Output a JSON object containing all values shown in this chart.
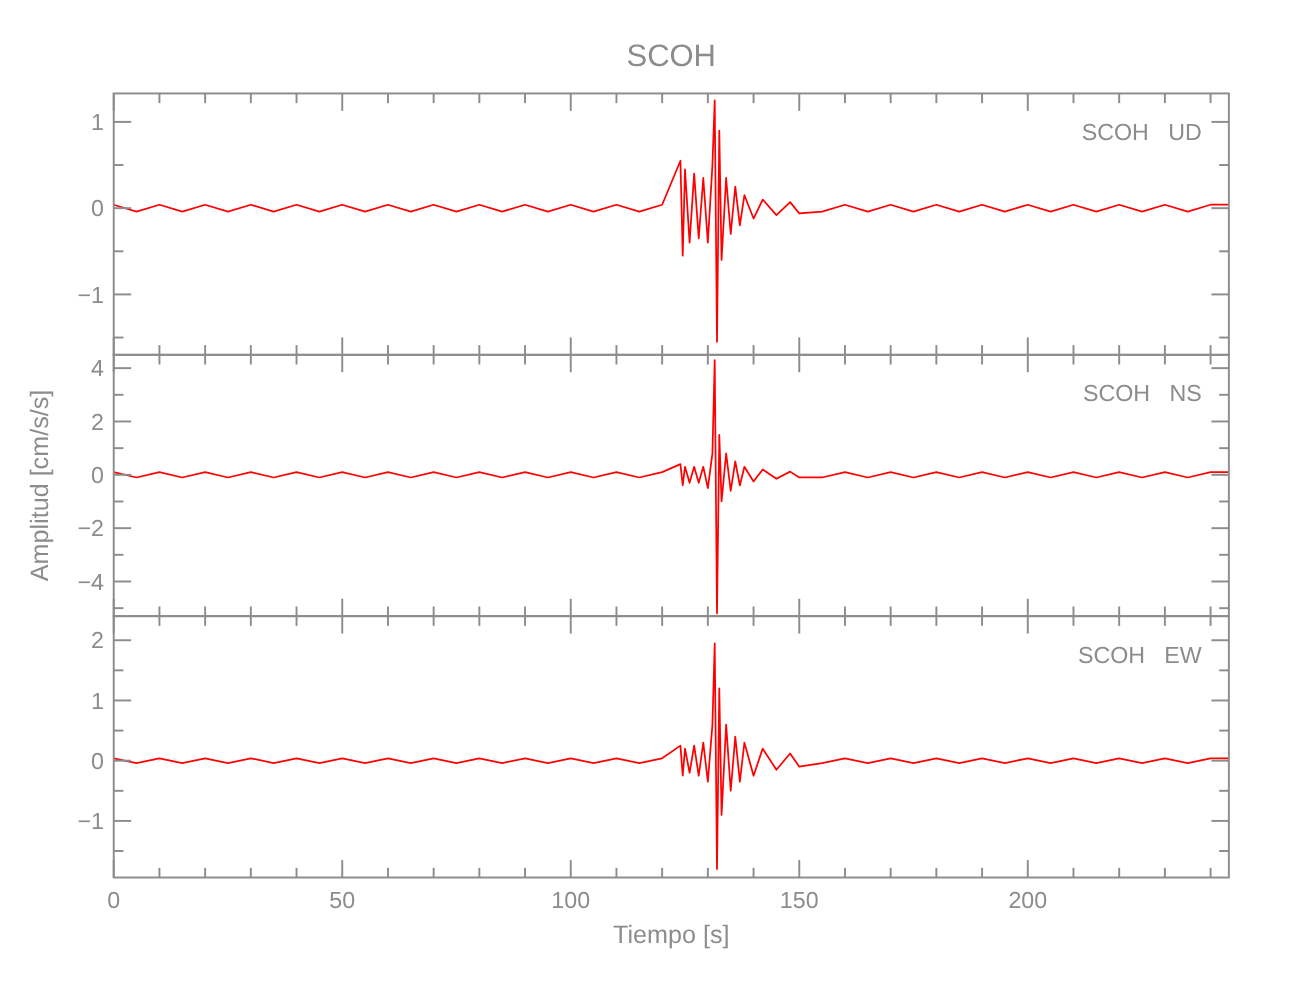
{
  "chart_data": [
    {
      "type": "line",
      "title": "SCOH",
      "annotations": [
        "SCOH   UD"
      ],
      "tick_labels": "y",
      "x": [
        0,
        5,
        10,
        15,
        20,
        25,
        30,
        35,
        40,
        45,
        50,
        55,
        60,
        65,
        70,
        75,
        80,
        85,
        90,
        95,
        100,
        105,
        110,
        115,
        120,
        124,
        124.5,
        125,
        126,
        127,
        128,
        129,
        130,
        131,
        131.5,
        132,
        132.5,
        133,
        134,
        135,
        136,
        137,
        138,
        140,
        142,
        145,
        148,
        150,
        155,
        160,
        165,
        170,
        175,
        180,
        185,
        190,
        195,
        200,
        205,
        210,
        215,
        220,
        225,
        230,
        235,
        240,
        244
      ],
      "xlim": [
        0,
        244
      ],
      "xticks": [
        0,
        {
          "value": 10,
          "label": null
        },
        {
          "value": 20,
          "label": null
        },
        {
          "value": 30,
          "label": null
        },
        {
          "value": 40,
          "label": null
        },
        50,
        {
          "value": 60,
          "label": null
        },
        {
          "value": 70,
          "label": null
        },
        {
          "value": 80,
          "label": null
        },
        {
          "value": 90,
          "label": null
        },
        100,
        {
          "value": 110,
          "label": null
        },
        {
          "value": 120,
          "label": null
        },
        {
          "value": 130,
          "label": null
        },
        {
          "value": 140,
          "label": null
        },
        150,
        {
          "value": 160,
          "label": null
        },
        {
          "value": 170,
          "label": null
        },
        {
          "value": 180,
          "label": null
        },
        {
          "value": 190,
          "label": null
        },
        200,
        {
          "value": 210,
          "label": null
        },
        {
          "value": 220,
          "label": null
        },
        {
          "value": 230,
          "label": null
        },
        {
          "value": 240,
          "label": null
        }
      ],
      "ylim": [
        -1.7,
        1.33
      ],
      "yticks": [
        {
          "value": -1.5,
          "label": null
        },
        -1,
        {
          "value": -0.5,
          "label": null
        },
        0,
        {
          "value": 0.5,
          "label": null
        },
        1
      ],
      "series": [
        {
          "color": "#ff0000",
          "values": [
            0.04,
            -0.04,
            0.04,
            -0.04,
            0.04,
            -0.04,
            0.04,
            -0.04,
            0.04,
            -0.04,
            0.04,
            -0.04,
            0.04,
            -0.04,
            0.04,
            -0.04,
            0.04,
            -0.04,
            0.04,
            -0.04,
            0.04,
            -0.04,
            0.04,
            -0.04,
            0.04,
            0.55,
            -0.55,
            0.45,
            -0.4,
            0.4,
            -0.35,
            0.35,
            -0.4,
            0.5,
            1.25,
            -1.55,
            0.9,
            -0.6,
            0.35,
            -0.3,
            0.25,
            -0.2,
            0.15,
            -0.12,
            0.1,
            -0.08,
            0.07,
            -0.06,
            -0.04,
            0.04,
            -0.04,
            0.04,
            -0.04,
            0.04,
            -0.04,
            0.04,
            -0.04,
            0.04,
            -0.04,
            0.04,
            -0.04,
            0.04,
            -0.04,
            0.04,
            -0.04,
            0.04,
            0.04
          ]
        }
      ]
    },
    {
      "type": "line",
      "ylabel": "Amplitud [cm/s/s]",
      "annotations": [
        "SCOH   NS"
      ],
      "tick_labels": "y",
      "x": [
        0,
        5,
        10,
        15,
        20,
        25,
        30,
        35,
        40,
        45,
        50,
        55,
        60,
        65,
        70,
        75,
        80,
        85,
        90,
        95,
        100,
        105,
        110,
        115,
        120,
        124,
        124.5,
        125,
        126,
        127,
        128,
        129,
        130,
        131,
        131.5,
        132,
        132.5,
        133,
        134,
        135,
        136,
        137,
        138,
        140,
        142,
        145,
        148,
        150,
        155,
        160,
        165,
        170,
        175,
        180,
        185,
        190,
        195,
        200,
        205,
        210,
        215,
        220,
        225,
        230,
        235,
        240,
        244
      ],
      "xlim": [
        0,
        244
      ],
      "xticks": [
        0,
        {
          "value": 10,
          "label": null
        },
        {
          "value": 20,
          "label": null
        },
        {
          "value": 30,
          "label": null
        },
        {
          "value": 40,
          "label": null
        },
        50,
        {
          "value": 60,
          "label": null
        },
        {
          "value": 70,
          "label": null
        },
        {
          "value": 80,
          "label": null
        },
        {
          "value": 90,
          "label": null
        },
        100,
        {
          "value": 110,
          "label": null
        },
        {
          "value": 120,
          "label": null
        },
        {
          "value": 130,
          "label": null
        },
        {
          "value": 140,
          "label": null
        },
        150,
        {
          "value": 160,
          "label": null
        },
        {
          "value": 170,
          "label": null
        },
        {
          "value": 180,
          "label": null
        },
        {
          "value": 190,
          "label": null
        },
        200,
        {
          "value": 210,
          "label": null
        },
        {
          "value": 220,
          "label": null
        },
        {
          "value": 230,
          "label": null
        },
        {
          "value": 240,
          "label": null
        }
      ],
      "ylim": [
        -5.3,
        4.5
      ],
      "yticks": [
        {
          "value": -5,
          "label": null
        },
        -4,
        {
          "value": -3,
          "label": null
        },
        -2,
        {
          "value": -1,
          "label": null
        },
        0,
        {
          "value": 1,
          "label": null
        },
        2,
        {
          "value": 3,
          "label": null
        },
        4
      ],
      "series": [
        {
          "color": "#ff0000",
          "values": [
            0.1,
            -0.1,
            0.1,
            -0.1,
            0.1,
            -0.1,
            0.1,
            -0.1,
            0.1,
            -0.1,
            0.1,
            -0.1,
            0.1,
            -0.1,
            0.1,
            -0.1,
            0.1,
            -0.1,
            0.1,
            -0.1,
            0.1,
            -0.1,
            0.1,
            -0.1,
            0.1,
            0.4,
            -0.4,
            0.3,
            -0.3,
            0.3,
            -0.3,
            0.3,
            -0.5,
            0.8,
            4.3,
            -5.2,
            1.5,
            -1,
            0.8,
            -0.6,
            0.5,
            -0.4,
            0.3,
            -0.25,
            0.2,
            -0.15,
            0.12,
            -0.1,
            -0.1,
            0.1,
            -0.1,
            0.1,
            -0.1,
            0.1,
            -0.1,
            0.1,
            -0.1,
            0.1,
            -0.1,
            0.1,
            -0.1,
            0.1,
            -0.1,
            0.1,
            -0.1,
            0.1,
            0.1
          ]
        }
      ]
    },
    {
      "type": "line",
      "xlabel": "Tiempo [s]",
      "annotations": [
        "SCOH   EW"
      ],
      "x": [
        0,
        5,
        10,
        15,
        20,
        25,
        30,
        35,
        40,
        45,
        50,
        55,
        60,
        65,
        70,
        75,
        80,
        85,
        90,
        95,
        100,
        105,
        110,
        115,
        120,
        124,
        124.5,
        125,
        126,
        127,
        128,
        129,
        130,
        131,
        131.5,
        132,
        132.5,
        133,
        134,
        135,
        136,
        137,
        138,
        140,
        142,
        145,
        148,
        150,
        155,
        160,
        165,
        170,
        175,
        180,
        185,
        190,
        195,
        200,
        205,
        210,
        215,
        220,
        225,
        230,
        235,
        240,
        244
      ],
      "xlim": [
        0,
        244
      ],
      "xticks": [
        0,
        {
          "value": 10,
          "label": null
        },
        {
          "value": 20,
          "label": null
        },
        {
          "value": 30,
          "label": null
        },
        {
          "value": 40,
          "label": null
        },
        50,
        {
          "value": 60,
          "label": null
        },
        {
          "value": 70,
          "label": null
        },
        {
          "value": 80,
          "label": null
        },
        {
          "value": 90,
          "label": null
        },
        100,
        {
          "value": 110,
          "label": null
        },
        {
          "value": 120,
          "label": null
        },
        {
          "value": 130,
          "label": null
        },
        {
          "value": 140,
          "label": null
        },
        150,
        {
          "value": 160,
          "label": null
        },
        {
          "value": 170,
          "label": null
        },
        {
          "value": 180,
          "label": null
        },
        {
          "value": 190,
          "label": null
        },
        200,
        {
          "value": 210,
          "label": null
        },
        {
          "value": 220,
          "label": null
        },
        {
          "value": 230,
          "label": null
        },
        {
          "value": 240,
          "label": null
        }
      ],
      "ylim": [
        -1.94,
        2.4
      ],
      "yticks": [
        {
          "value": -1.5,
          "label": null
        },
        -1,
        {
          "value": -0.5,
          "label": null
        },
        0,
        {
          "value": 0.5,
          "label": null
        },
        1,
        {
          "value": 1.5,
          "label": null
        },
        2
      ],
      "series": [
        {
          "color": "#ff0000",
          "values": [
            0.04,
            -0.04,
            0.04,
            -0.04,
            0.04,
            -0.04,
            0.04,
            -0.04,
            0.04,
            -0.04,
            0.04,
            -0.04,
            0.04,
            -0.04,
            0.04,
            -0.04,
            0.04,
            -0.04,
            0.04,
            -0.04,
            0.04,
            -0.04,
            0.04,
            -0.04,
            0.04,
            0.25,
            -0.25,
            0.2,
            -0.2,
            0.25,
            -0.25,
            0.3,
            -0.35,
            0.6,
            1.95,
            -1.8,
            1.2,
            -0.9,
            0.6,
            -0.5,
            0.4,
            -0.35,
            0.3,
            -0.25,
            0.2,
            -0.15,
            0.12,
            -0.1,
            -0.04,
            0.04,
            -0.04,
            0.04,
            -0.04,
            0.04,
            -0.04,
            0.04,
            -0.04,
            0.04,
            -0.04,
            0.04,
            -0.04,
            0.04,
            -0.04,
            0.04,
            -0.04,
            0.04,
            0.04
          ]
        }
      ]
    }
  ]
}
